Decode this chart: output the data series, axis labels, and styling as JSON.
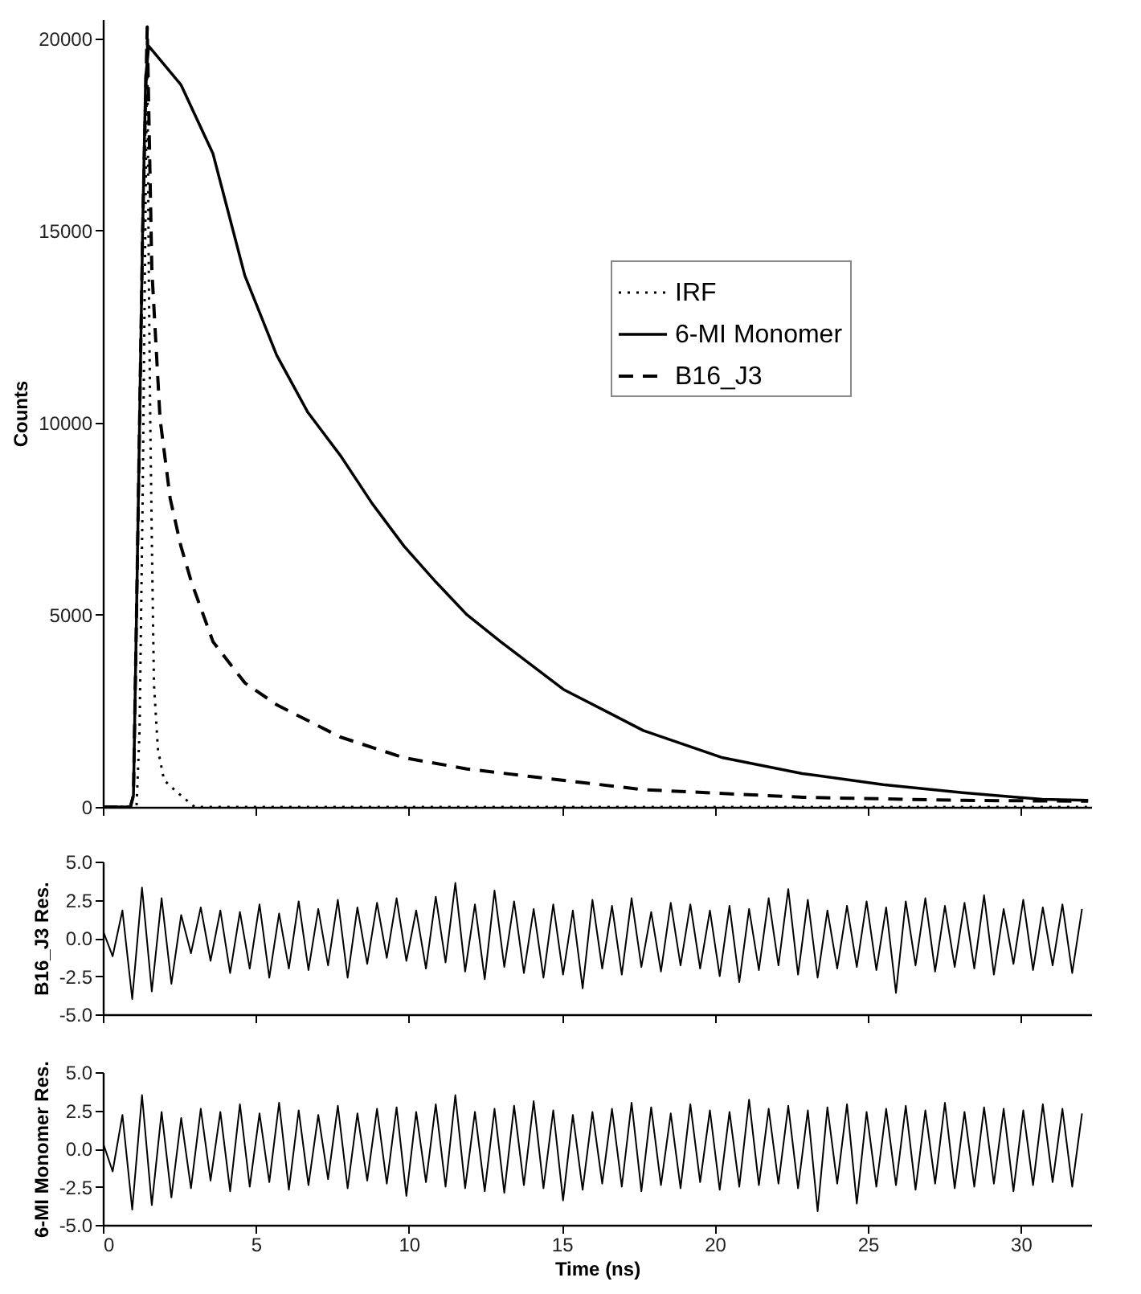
{
  "chart_data": [
    {
      "type": "line",
      "ylabel": "Counts",
      "xlim": [
        0,
        32.3
      ],
      "xticks": [
        0,
        5,
        10,
        15,
        20,
        25,
        30
      ],
      "ylim": [
        0,
        20500
      ],
      "yticks": [
        0,
        5000,
        10000,
        15000,
        20000
      ],
      "tick_labels": "y",
      "legend": "top right",
      "series": [
        {
          "name": "IRF",
          "color": "#000000",
          "line_style": "dotted",
          "x": [
            0,
            1.1,
            1.2,
            1.3,
            1.4,
            1.45,
            1.5,
            1.55,
            1.6,
            1.67,
            1.8,
            2.0,
            2.4,
            3.0,
            32.2
          ],
          "values": [
            0,
            0,
            2000,
            8000,
            16000,
            20000,
            14000,
            10000,
            7000,
            3200,
            1500,
            700,
            400,
            0,
            0
          ]
        },
        {
          "name": "6-MI Monomer",
          "color": "#000000",
          "line_style": "solid",
          "x": [
            0,
            0.9,
            1.0,
            1.1,
            1.2,
            1.3,
            1.4,
            1.5,
            2.55,
            3.6,
            4.64,
            5.68,
            6.7,
            7.76,
            8.8,
            9.84,
            10.9,
            11.9,
            13.0,
            15.05,
            17.66,
            20.26,
            22.86,
            25.5,
            28.1,
            30.7,
            32.2
          ],
          "values": [
            0,
            0,
            300,
            5000,
            10000,
            15000,
            19000,
            19800,
            18800,
            17000,
            13830,
            11760,
            10270,
            9150,
            7900,
            6790,
            5840,
            5000,
            4300,
            3060,
            1990,
            1280,
            870,
            580,
            370,
            200,
            170
          ]
        },
        {
          "name": "B16_J3",
          "color": "#000000",
          "line_style": "dashed",
          "x": [
            0,
            0.9,
            1.0,
            1.1,
            1.2,
            1.3,
            1.45,
            1.6,
            1.87,
            2.2,
            2.55,
            2.9,
            3.6,
            4.64,
            5.7,
            7.76,
            9.84,
            11.9,
            14.0,
            17.66,
            22.9,
            28.1,
            32.2
          ],
          "values": [
            0,
            0,
            300,
            5000,
            10000,
            15000,
            20300,
            14000,
            10100,
            8030,
            6790,
            5840,
            4300,
            3230,
            2650,
            1820,
            1280,
            990,
            790,
            450,
            250,
            170,
            150
          ]
        }
      ]
    },
    {
      "type": "line",
      "ylabel": "B16_J3 Res.",
      "xlim": [
        0,
        32.3
      ],
      "xticks": [
        0,
        5,
        10,
        15,
        20,
        25,
        30
      ],
      "ylim": [
        -5,
        5
      ],
      "yticks": [
        {
          "value": -5,
          "label": "-5.0"
        },
        -2.5,
        {
          "value": 0,
          "label": "0.0"
        },
        2.5,
        {
          "value": 5,
          "label": "5.0"
        }
      ],
      "tick_labels": "y",
      "series": [
        {
          "color": "#000000",
          "line_style": "solid",
          "x": [
            0,
            0.32,
            0.64,
            0.96,
            1.28,
            1.6,
            1.92,
            2.24,
            2.56,
            2.88,
            3.2,
            3.52,
            3.84,
            4.16,
            4.48,
            4.8,
            5.12,
            5.44,
            5.76,
            6.08,
            6.4,
            6.72,
            7.04,
            7.36,
            7.68,
            8,
            8.32,
            8.64,
            8.96,
            9.28,
            9.6,
            9.92,
            10.24,
            10.56,
            10.88,
            11.2,
            11.52,
            11.84,
            12.16,
            12.48,
            12.8,
            13.12,
            13.44,
            13.76,
            14.08,
            14.4,
            14.72,
            15.04,
            15.36,
            15.68,
            16,
            16.32,
            16.64,
            16.96,
            17.28,
            17.6,
            17.92,
            18.24,
            18.56,
            18.88,
            19.2,
            19.52,
            19.84,
            20.16,
            20.48,
            20.8,
            21.12,
            21.44,
            21.76,
            22.08,
            22.4,
            22.72,
            23.04,
            23.36,
            23.68,
            24,
            24.32,
            24.64,
            24.96,
            25.28,
            25.6,
            25.92,
            26.24,
            26.56,
            26.88,
            27.2,
            27.52,
            27.84,
            28.16,
            28.48,
            28.8,
            29.12,
            29.44,
            29.76,
            30.08,
            30.4,
            30.72,
            31.04,
            31.36,
            31.68,
            32
          ],
          "values": [
            0.5,
            -1.2,
            1.8,
            -4.0,
            3.3,
            -3.5,
            2.6,
            -3.0,
            1.5,
            -1.0,
            2.0,
            -1.5,
            1.8,
            -2.3,
            1.7,
            -2.0,
            2.2,
            -2.6,
            1.6,
            -2.0,
            2.4,
            -2.1,
            1.9,
            -1.8,
            2.5,
            -2.6,
            2.0,
            -1.7,
            2.3,
            -1.3,
            2.6,
            -1.5,
            1.8,
            -2.0,
            2.7,
            -1.6,
            3.6,
            -2.2,
            2.2,
            -2.7,
            3.1,
            -1.9,
            2.4,
            -2.3,
            1.9,
            -2.6,
            2.2,
            -2.4,
            1.8,
            -3.3,
            2.5,
            -2.0,
            2.1,
            -2.4,
            2.6,
            -1.9,
            1.7,
            -2.2,
            2.3,
            -1.8,
            2.2,
            -2.0,
            1.8,
            -2.5,
            2.1,
            -2.9,
            1.9,
            -2.1,
            2.6,
            -1.8,
            3.2,
            -2.4,
            2.5,
            -2.6,
            1.8,
            -2.0,
            2.1,
            -1.9,
            2.4,
            -2.1,
            2.0,
            -3.6,
            2.4,
            -1.8,
            2.6,
            -2.2,
            2.1,
            -1.9,
            2.3,
            -2.0,
            2.8,
            -2.4,
            1.9,
            -1.7,
            2.5,
            -2.1,
            2.0,
            -1.8,
            2.2,
            -2.3,
            1.9
          ]
        }
      ]
    },
    {
      "type": "line",
      "xlabel": "Time (ns)",
      "ylabel": "6-MI Monomer Res.",
      "xlim": [
        0,
        32.3
      ],
      "xticks": [
        0,
        5,
        10,
        15,
        20,
        25,
        30
      ],
      "ylim": [
        -5,
        5
      ],
      "yticks": [
        {
          "value": -5,
          "label": "-5.0"
        },
        -2.5,
        {
          "value": 0,
          "label": "0.0"
        },
        2.5,
        {
          "value": 5,
          "label": "5.0"
        }
      ],
      "series": [
        {
          "color": "#000000",
          "line_style": "solid",
          "x": [
            0,
            0.32,
            0.64,
            0.96,
            1.28,
            1.6,
            1.92,
            2.24,
            2.56,
            2.88,
            3.2,
            3.52,
            3.84,
            4.16,
            4.48,
            4.8,
            5.12,
            5.44,
            5.76,
            6.08,
            6.4,
            6.72,
            7.04,
            7.36,
            7.68,
            8,
            8.32,
            8.64,
            8.96,
            9.28,
            9.6,
            9.92,
            10.24,
            10.56,
            10.88,
            11.2,
            11.52,
            11.84,
            12.16,
            12.48,
            12.8,
            13.12,
            13.44,
            13.76,
            14.08,
            14.4,
            14.72,
            15.04,
            15.36,
            15.68,
            16,
            16.32,
            16.64,
            16.96,
            17.28,
            17.6,
            17.92,
            18.24,
            18.56,
            18.88,
            19.2,
            19.52,
            19.84,
            20.16,
            20.48,
            20.8,
            21.12,
            21.44,
            21.76,
            22.08,
            22.4,
            22.72,
            23.04,
            23.36,
            23.68,
            24,
            24.32,
            24.64,
            24.96,
            25.28,
            25.6,
            25.92,
            26.24,
            26.56,
            26.88,
            27.2,
            27.52,
            27.84,
            28.16,
            28.48,
            28.8,
            29.12,
            29.44,
            29.76,
            30.08,
            30.4,
            30.72,
            31.04,
            31.36,
            31.68,
            32
          ],
          "values": [
            0.4,
            -1.5,
            2.2,
            -4.0,
            3.5,
            -3.7,
            2.4,
            -3.2,
            2.0,
            -2.6,
            2.6,
            -2.1,
            2.4,
            -2.8,
            2.9,
            -2.5,
            2.3,
            -2.2,
            3.0,
            -2.7,
            2.5,
            -2.4,
            2.2,
            -2.0,
            2.8,
            -2.6,
            2.3,
            -2.1,
            2.6,
            -2.3,
            2.7,
            -3.1,
            2.4,
            -2.2,
            2.9,
            -2.5,
            3.5,
            -2.6,
            2.4,
            -2.8,
            2.6,
            -2.9,
            2.8,
            -2.4,
            3.1,
            -2.6,
            2.5,
            -3.4,
            2.2,
            -2.7,
            2.4,
            -2.3,
            2.6,
            -2.5,
            3.0,
            -2.8,
            2.7,
            -2.4,
            2.3,
            -2.6,
            2.9,
            -2.2,
            2.5,
            -2.7,
            2.4,
            -2.5,
            3.2,
            -2.4,
            2.6,
            -2.3,
            2.8,
            -2.6,
            2.5,
            -4.1,
            2.7,
            -2.3,
            2.9,
            -3.6,
            2.4,
            -2.5,
            2.6,
            -2.4,
            2.8,
            -2.7,
            2.5,
            -2.3,
            3.0,
            -2.6,
            2.4,
            -2.5,
            2.7,
            -2.3,
            2.6,
            -2.8,
            2.5,
            -2.4,
            2.9,
            -2.2,
            2.6,
            -2.5,
            2.3
          ]
        }
      ]
    }
  ]
}
